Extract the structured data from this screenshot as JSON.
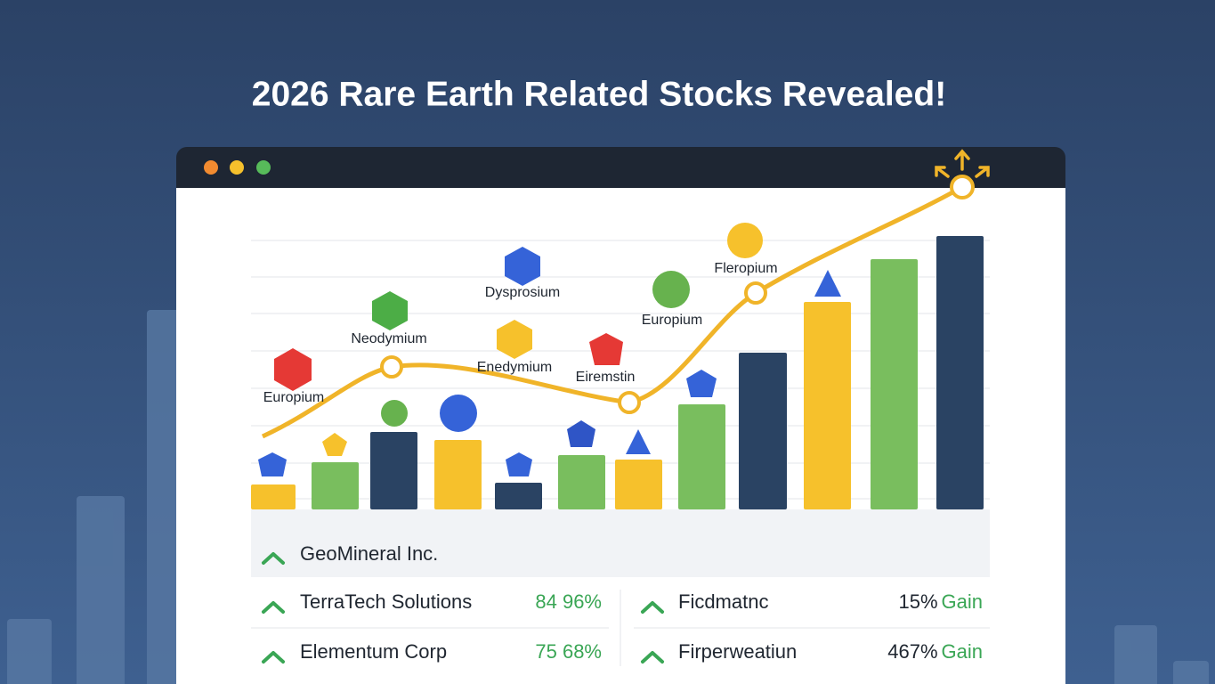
{
  "header": {
    "title": "2026 Rare Earth Related Stocks Revealed!"
  },
  "elements": [
    "Europium",
    "Neodymium",
    "Dysprosium",
    "Enedymium",
    "Eiremstin",
    "Europium",
    "Fleropium"
  ],
  "list": {
    "top": "GeoMineral Inc.",
    "rows": [
      {
        "left": {
          "name": "TerraTech Solutions",
          "change": "84 96%"
        },
        "right": {
          "name": "Ficdmatnc",
          "change": "15%",
          "note": "Gain"
        }
      },
      {
        "left": {
          "name": "Elementum Corp",
          "change": "75 68%"
        },
        "right": {
          "name": "Firperweatiun",
          "change": "467%",
          "note": "Gain"
        }
      }
    ]
  }
}
